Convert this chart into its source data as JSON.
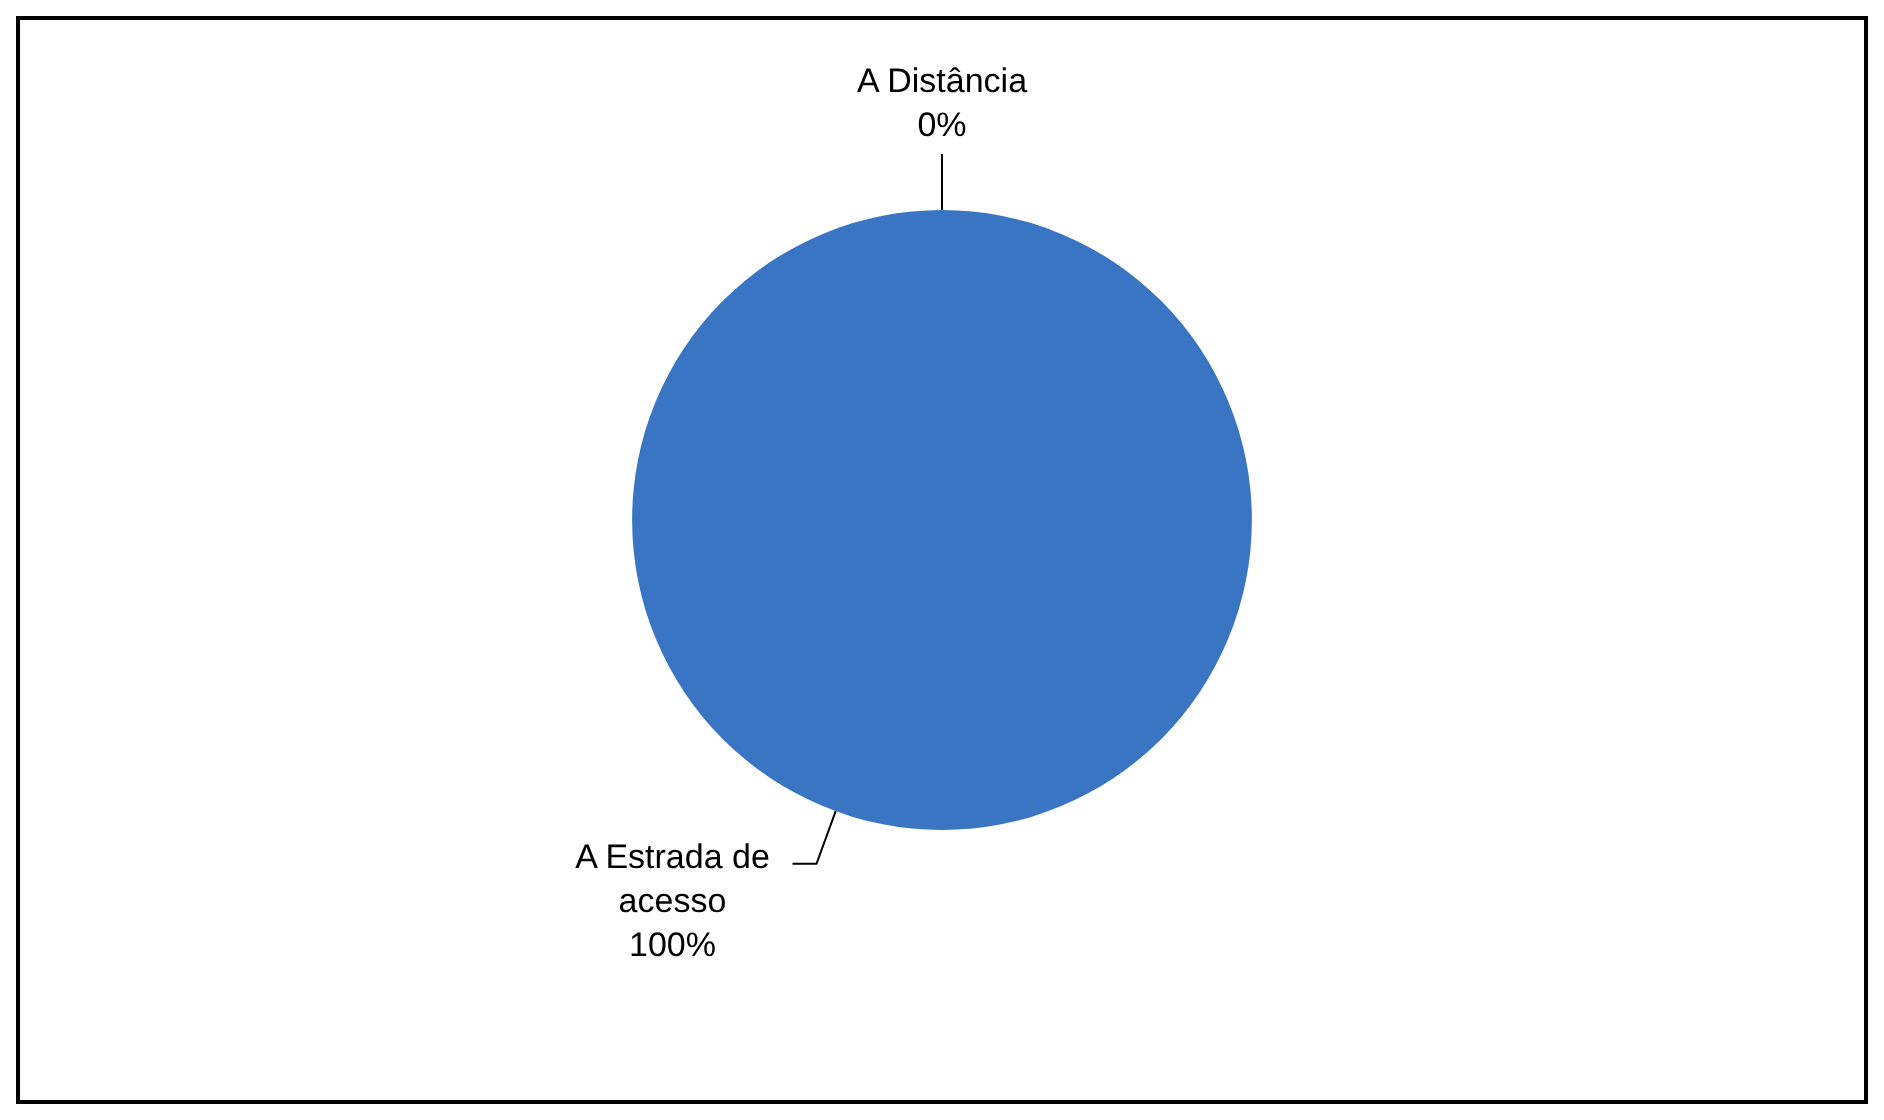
{
  "chart_data": {
    "type": "pie",
    "categories": [
      "A Distância",
      "A Estrada de acesso"
    ],
    "values": [
      0,
      100
    ],
    "colors": [
      "#3a75c4",
      "#3a75c4"
    ],
    "value_labels": [
      "0%",
      "100%"
    ],
    "legend": false
  }
}
